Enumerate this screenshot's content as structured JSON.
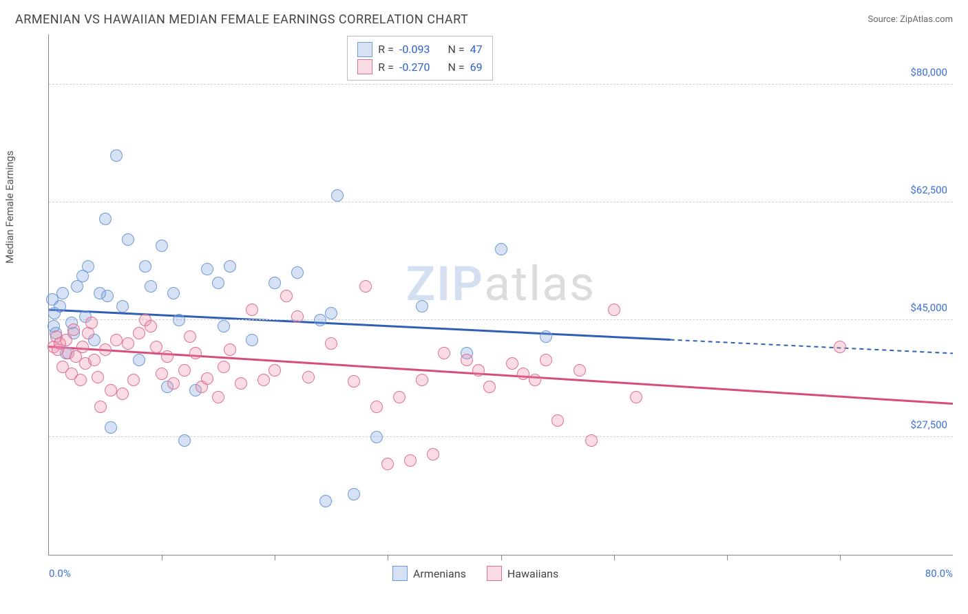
{
  "title": "ARMENIAN VS HAWAIIAN MEDIAN FEMALE EARNINGS CORRELATION CHART",
  "source": "Source: ZipAtlas.com",
  "ylabel": "Median Female Earnings",
  "watermark_a": "ZIP",
  "watermark_b": "atlas",
  "chart": {
    "type": "scatter",
    "xlim": [
      0,
      80
    ],
    "ylim": [
      10000,
      87500
    ],
    "x_min_label": "0.0%",
    "x_max_label": "80.0%",
    "x_tick_positions": [
      10,
      20,
      30,
      40,
      50,
      60,
      70
    ],
    "y_ticks": [
      {
        "v": 80000,
        "label": "$80,000"
      },
      {
        "v": 62500,
        "label": "$62,500"
      },
      {
        "v": 45000,
        "label": "$45,000"
      },
      {
        "v": 27500,
        "label": "$27,500"
      }
    ],
    "background_color": "#ffffff",
    "grid_color": "#d0d0d0"
  },
  "series": [
    {
      "name": "Armenians",
      "fill": "rgba(120,160,220,0.30)",
      "stroke": "#6b9ad8",
      "line_color": "#2e5fb5",
      "trend": {
        "x1": 0,
        "y1": 46500,
        "x2": 80,
        "y2": 40000,
        "solid_to": 55
      },
      "stats": {
        "R": "-0.093",
        "N": "47"
      },
      "marker_r": 9,
      "points": [
        [
          0.3,
          48000
        ],
        [
          0.5,
          46000
        ],
        [
          0.6,
          43000
        ],
        [
          0.4,
          44000
        ],
        [
          1,
          47000
        ],
        [
          1.2,
          49000
        ],
        [
          1.5,
          40000
        ],
        [
          2,
          44500
        ],
        [
          2.2,
          43000
        ],
        [
          2.5,
          50000
        ],
        [
          3,
          51500
        ],
        [
          3.2,
          45500
        ],
        [
          3.5,
          53000
        ],
        [
          4,
          42000
        ],
        [
          4.5,
          49000
        ],
        [
          5,
          60000
        ],
        [
          5.2,
          48500
        ],
        [
          5.5,
          29000
        ],
        [
          6,
          69500
        ],
        [
          6.5,
          47000
        ],
        [
          7,
          57000
        ],
        [
          8,
          39000
        ],
        [
          8.5,
          53000
        ],
        [
          9,
          50000
        ],
        [
          10,
          56000
        ],
        [
          10.5,
          35000
        ],
        [
          11,
          49000
        ],
        [
          11.5,
          45000
        ],
        [
          12,
          27000
        ],
        [
          13,
          34500
        ],
        [
          14,
          52500
        ],
        [
          15,
          50500
        ],
        [
          15.5,
          44000
        ],
        [
          16,
          53000
        ],
        [
          18,
          42000
        ],
        [
          20,
          50500
        ],
        [
          22,
          52000
        ],
        [
          24,
          45000
        ],
        [
          24.5,
          18000
        ],
        [
          25,
          46000
        ],
        [
          25.5,
          63500
        ],
        [
          27,
          19000
        ],
        [
          29,
          27500
        ],
        [
          33,
          47000
        ],
        [
          37,
          40000
        ],
        [
          40,
          55500
        ],
        [
          44,
          42500
        ]
      ]
    },
    {
      "name": "Hawaiians",
      "fill": "rgba(240,140,170,0.30)",
      "stroke": "#e06f94",
      "line_color": "#d64d7a",
      "trend": {
        "x1": 0,
        "y1": 41000,
        "x2": 80,
        "y2": 32500,
        "solid_to": 80
      },
      "stats": {
        "R": "-0.270",
        "N": "69"
      },
      "marker_r": 9,
      "points": [
        [
          0.4,
          41000
        ],
        [
          0.7,
          42500
        ],
        [
          0.8,
          40500
        ],
        [
          1,
          41500
        ],
        [
          1.2,
          38000
        ],
        [
          1.5,
          42000
        ],
        [
          1.7,
          40000
        ],
        [
          2,
          37000
        ],
        [
          2.2,
          43500
        ],
        [
          2.4,
          39500
        ],
        [
          2.8,
          36000
        ],
        [
          3,
          41000
        ],
        [
          3.2,
          38500
        ],
        [
          3.5,
          43000
        ],
        [
          3.8,
          44500
        ],
        [
          4,
          39000
        ],
        [
          4.3,
          36500
        ],
        [
          4.6,
          32000
        ],
        [
          5,
          40500
        ],
        [
          5.5,
          34500
        ],
        [
          6,
          42000
        ],
        [
          6.5,
          34000
        ],
        [
          7,
          41500
        ],
        [
          7.5,
          36000
        ],
        [
          8,
          43000
        ],
        [
          8.5,
          45000
        ],
        [
          9,
          44000
        ],
        [
          9.5,
          41000
        ],
        [
          10,
          37000
        ],
        [
          10.5,
          39500
        ],
        [
          11,
          35500
        ],
        [
          12,
          37500
        ],
        [
          12.5,
          42500
        ],
        [
          13,
          40000
        ],
        [
          13.5,
          35000
        ],
        [
          14,
          36200
        ],
        [
          15,
          33500
        ],
        [
          15.5,
          38000
        ],
        [
          16,
          40500
        ],
        [
          17,
          35500
        ],
        [
          18,
          46500
        ],
        [
          19,
          36000
        ],
        [
          20,
          37500
        ],
        [
          21,
          48500
        ],
        [
          22,
          45500
        ],
        [
          23,
          36500
        ],
        [
          25,
          41500
        ],
        [
          27,
          35800
        ],
        [
          28,
          50000
        ],
        [
          29,
          32000
        ],
        [
          30,
          23500
        ],
        [
          31,
          33500
        ],
        [
          32,
          24000
        ],
        [
          33,
          36000
        ],
        [
          34,
          25000
        ],
        [
          35,
          40000
        ],
        [
          37,
          39000
        ],
        [
          38,
          37500
        ],
        [
          39,
          35000
        ],
        [
          41,
          38500
        ],
        [
          42,
          37000
        ],
        [
          43,
          36000
        ],
        [
          44,
          39000
        ],
        [
          45,
          30000
        ],
        [
          47,
          37500
        ],
        [
          48,
          27000
        ],
        [
          50,
          46500
        ],
        [
          52,
          33500
        ],
        [
          70,
          41000
        ]
      ]
    }
  ],
  "stats_box": {
    "rows": [
      {
        "swatch": "armenian",
        "R_label": "R =",
        "R": "-0.093",
        "N_label": "N =",
        "N": "47"
      },
      {
        "swatch": "hawaiian",
        "R_label": "R =",
        "R": "-0.270",
        "N_label": "N =",
        "N": "69"
      }
    ]
  },
  "legend": [
    {
      "swatch": "armenian",
      "label": "Armenians"
    },
    {
      "swatch": "hawaiian",
      "label": "Hawaiians"
    }
  ]
}
